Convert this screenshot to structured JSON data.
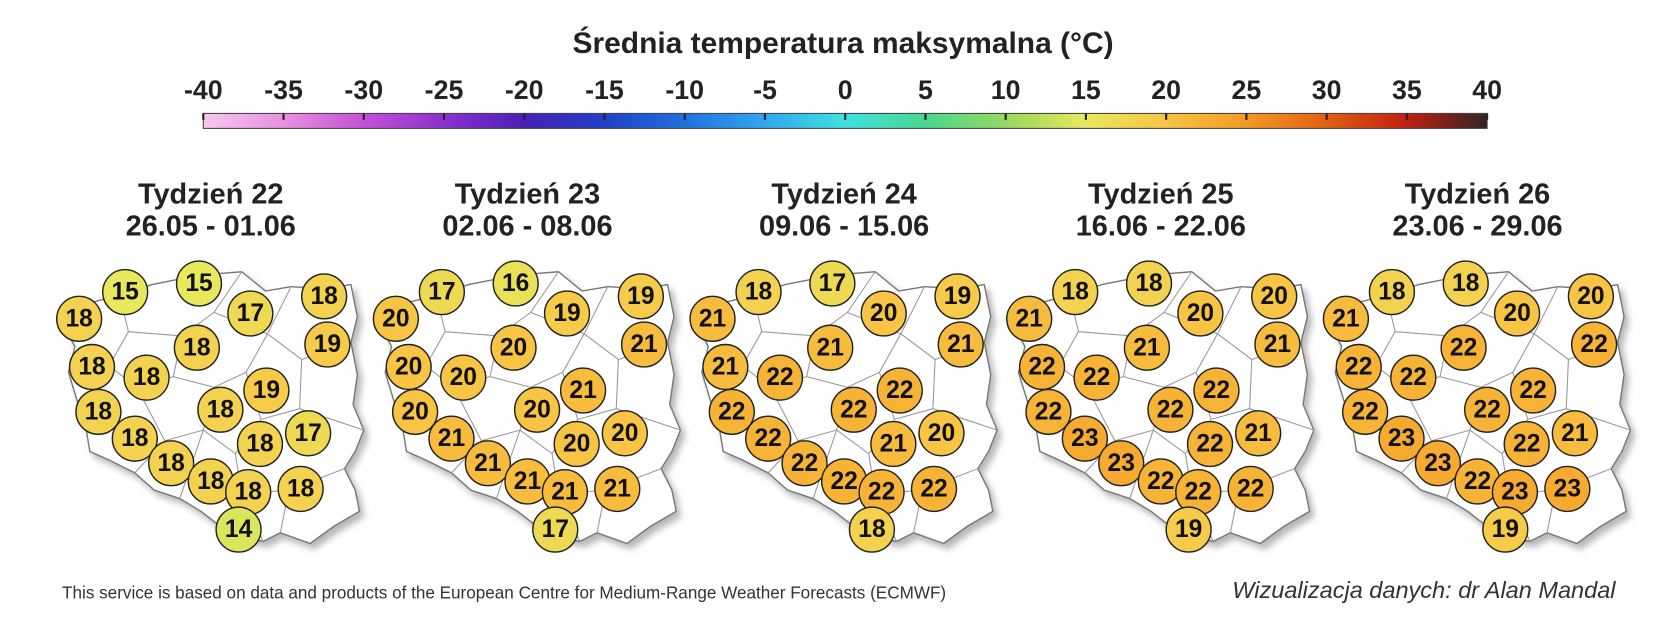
{
  "title": "Średnia temperatura maksymalna (°C)",
  "colorbar": {
    "ticks": [
      -40,
      -35,
      -30,
      -25,
      -20,
      -15,
      -10,
      -5,
      0,
      5,
      10,
      15,
      20,
      25,
      30,
      35,
      40
    ],
    "colors": [
      "#f6c8ee",
      "#e890e0",
      "#c450d8",
      "#8c30d0",
      "#4a20b8",
      "#2040c8",
      "#2070e0",
      "#30a8f0",
      "#40e0e0",
      "#48d890",
      "#98d860",
      "#e8e85c",
      "#f8c444",
      "#f49a22",
      "#e06010",
      "#c02010",
      "#302424"
    ]
  },
  "maps": [
    {
      "week": "Tydzień 22",
      "dates": "26.05 - 01.06",
      "values": [
        15,
        15,
        18,
        17,
        18,
        18,
        19,
        18,
        18,
        18,
        18,
        19,
        18,
        18,
        17,
        18,
        18,
        18,
        18,
        14
      ]
    },
    {
      "week": "Tydzień 23",
      "dates": "02.06 - 08.06",
      "values": [
        17,
        16,
        20,
        19,
        19,
        20,
        21,
        20,
        20,
        20,
        20,
        21,
        21,
        20,
        20,
        21,
        21,
        21,
        21,
        17
      ]
    },
    {
      "week": "Tydzień 24",
      "dates": "09.06 - 15.06",
      "values": [
        18,
        17,
        21,
        20,
        19,
        21,
        21,
        21,
        22,
        22,
        22,
        22,
        22,
        21,
        20,
        22,
        22,
        22,
        22,
        18
      ]
    },
    {
      "week": "Tydzień 25",
      "dates": "16.06 - 22.06",
      "values": [
        18,
        18,
        21,
        20,
        20,
        21,
        21,
        22,
        22,
        22,
        22,
        22,
        23,
        22,
        21,
        23,
        22,
        22,
        22,
        19
      ]
    },
    {
      "week": "Tydzień 26",
      "dates": "23.06 - 29.06",
      "values": [
        18,
        18,
        21,
        20,
        20,
        22,
        22,
        22,
        22,
        22,
        22,
        22,
        23,
        22,
        21,
        23,
        22,
        23,
        23,
        19
      ]
    }
  ],
  "footer": {
    "source": "This service is based on data and products of the European Centre for Medium-Range Weather Forecasts (ECMWF)",
    "credit": "Wizualizacja danych: dr Alan Mandal"
  }
}
